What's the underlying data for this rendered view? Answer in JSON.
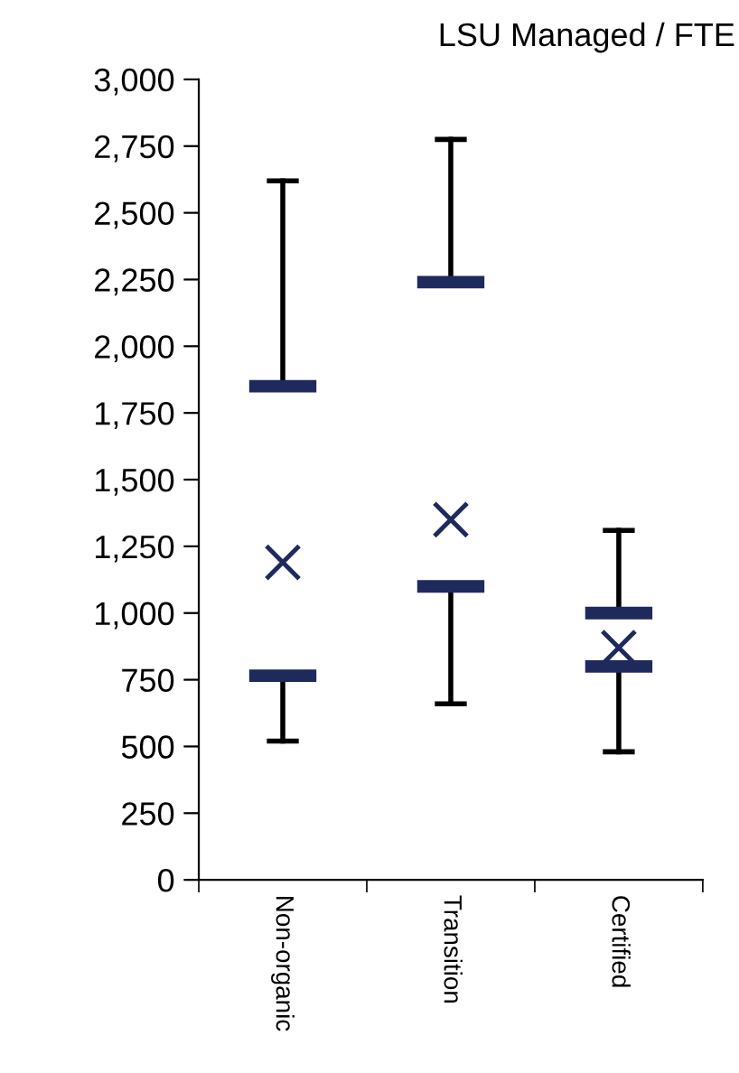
{
  "chart_data": {
    "type": "box",
    "title": "LSU Managed / FTE",
    "categories": [
      "Non-organic",
      "Transition",
      "Certified"
    ],
    "series": [
      {
        "color": "#1f2a5c",
        "boxes": [
          {
            "low": 520,
            "q1": 765,
            "q3": 1850,
            "high": 2620,
            "mean": 1190
          },
          {
            "low": 660,
            "q1": 1100,
            "q3": 2240,
            "high": 2775,
            "mean": 1350
          },
          {
            "low": 480,
            "q1": 800,
            "q3": 1000,
            "high": 1310,
            "mean": 870
          }
        ]
      }
    ],
    "ylim": [
      0,
      3000
    ],
    "yticks": [
      0,
      {
        "value": 250,
        "label": "250"
      },
      {
        "value": 500,
        "label": "500"
      },
      {
        "value": 750,
        "label": "750"
      },
      {
        "value": 1000,
        "label": "1,000"
      },
      {
        "value": 1250,
        "label": "1,250"
      },
      {
        "value": 1500,
        "label": "1,500"
      },
      {
        "value": 1750,
        "label": "1,750"
      },
      {
        "value": 2000,
        "label": "2,000"
      },
      {
        "value": 2250,
        "label": "2,250"
      },
      {
        "value": 2500,
        "label": "2,500"
      },
      {
        "value": 2750,
        "label": "2,750"
      },
      {
        "value": 3000,
        "label": "3,000"
      }
    ],
    "grid": false,
    "marker": "cross"
  }
}
